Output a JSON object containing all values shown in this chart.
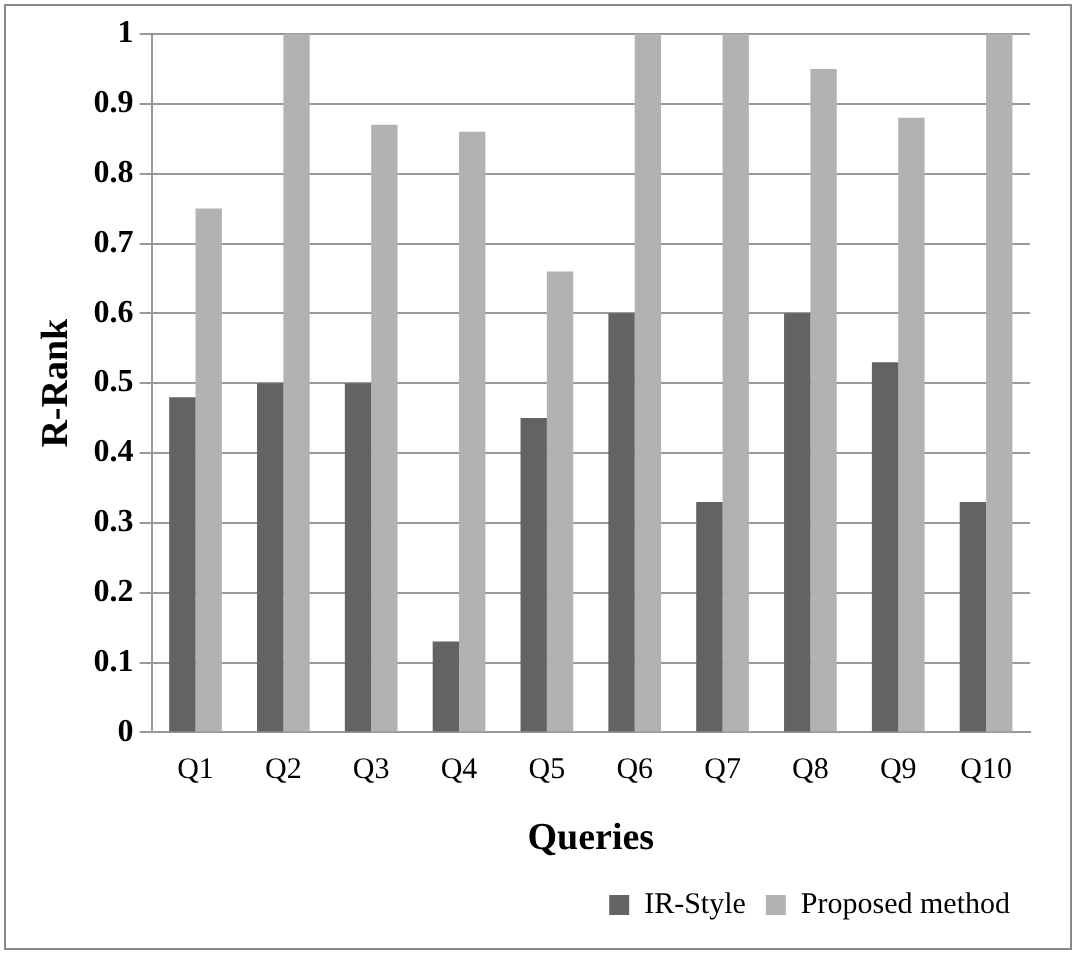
{
  "chart_data": {
    "type": "bar",
    "xlabel": "Queries",
    "ylabel": "R-Rank",
    "categories": [
      "Q1",
      "Q2",
      "Q3",
      "Q4",
      "Q5",
      "Q6",
      "Q7",
      "Q8",
      "Q9",
      "Q10"
    ],
    "series": [
      {
        "name": "IR-Style",
        "color": "#636363",
        "values": [
          0.48,
          0.5,
          0.5,
          0.13,
          0.45,
          0.6,
          0.33,
          0.6,
          0.53,
          0.33
        ]
      },
      {
        "name": "Proposed method",
        "color": "#b2b2b2",
        "values": [
          0.75,
          1,
          0.87,
          0.86,
          0.66,
          1,
          1,
          0.95,
          0.88,
          1
        ]
      }
    ],
    "ylim": [
      0,
      1
    ],
    "yticks": [
      0,
      0.1,
      0.2,
      0.3,
      0.4,
      0.5,
      0.6,
      0.7,
      0.8,
      0.9,
      1
    ],
    "grid": "y",
    "legend": "bottom right"
  }
}
